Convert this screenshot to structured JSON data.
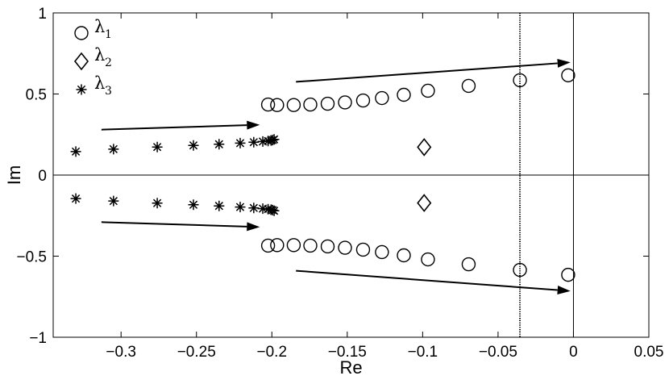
{
  "chart_data": {
    "type": "scatter",
    "title": "",
    "xlabel": "Re",
    "ylabel": "Im",
    "xlim": [
      -0.345,
      0.05
    ],
    "ylim": [
      -1,
      1
    ],
    "xticks": [
      -0.3,
      -0.25,
      -0.2,
      -0.15,
      -0.1,
      -0.05,
      0,
      0.05
    ],
    "xtick_labels": [
      "−0.3",
      "−0.25",
      "−0.2",
      "−0.15",
      "−0.1",
      "−0.05",
      "0",
      "0.05"
    ],
    "yticks": [
      -1,
      -0.5,
      0,
      0.5,
      1
    ],
    "ytick_labels": [
      "−1",
      "−0.5",
      "0",
      "0.5",
      "1"
    ],
    "grid": false,
    "legend_position": "top-left",
    "series": [
      {
        "name": "λ",
        "subscript": "1",
        "marker": "circle",
        "x": [
          -0.2025,
          -0.1965,
          -0.1855,
          -0.1745,
          -0.163,
          -0.1515,
          -0.1395,
          -0.127,
          -0.1125,
          -0.0965,
          -0.0695,
          -0.0355,
          -0.0035,
          -0.2025,
          -0.1965,
          -0.1855,
          -0.1745,
          -0.163,
          -0.1515,
          -0.1395,
          -0.127,
          -0.1125,
          -0.0965,
          -0.0695,
          -0.0355,
          -0.0035
        ],
        "y": [
          0.435,
          0.432,
          0.432,
          0.435,
          0.44,
          0.448,
          0.46,
          0.475,
          0.495,
          0.52,
          0.55,
          0.585,
          0.615,
          -0.435,
          -0.432,
          -0.432,
          -0.435,
          -0.44,
          -0.448,
          -0.46,
          -0.475,
          -0.495,
          -0.52,
          -0.55,
          -0.585,
          -0.615
        ]
      },
      {
        "name": "λ",
        "subscript": "2",
        "marker": "diamond",
        "x": [
          -0.099,
          -0.099
        ],
        "y": [
          0.172,
          -0.172
        ]
      },
      {
        "name": "λ",
        "subscript": "3",
        "marker": "asterisk",
        "x": [
          -0.33,
          -0.305,
          -0.276,
          -0.252,
          -0.235,
          -0.221,
          -0.212,
          -0.206,
          -0.2025,
          -0.2005,
          -0.1995,
          -0.1985,
          -0.33,
          -0.305,
          -0.276,
          -0.252,
          -0.235,
          -0.221,
          -0.212,
          -0.206,
          -0.2025,
          -0.2005,
          -0.1995,
          -0.1985
        ],
        "y": [
          0.145,
          0.16,
          0.173,
          0.183,
          0.19,
          0.197,
          0.203,
          0.207,
          0.21,
          0.213,
          0.216,
          0.22,
          -0.145,
          -0.16,
          -0.173,
          -0.183,
          -0.19,
          -0.197,
          -0.203,
          -0.207,
          -0.21,
          -0.213,
          -0.216,
          -0.22
        ]
      }
    ],
    "reference_lines": [
      {
        "axis": "x",
        "value": 0,
        "style": "solid"
      },
      {
        "axis": "y",
        "value": 0,
        "style": "solid"
      },
      {
        "axis": "x",
        "value": -0.0355,
        "style": "dotted"
      }
    ],
    "arrows": [
      {
        "from": [
          -0.313,
          0.28
        ],
        "to": [
          -0.208,
          0.31
        ]
      },
      {
        "from": [
          -0.313,
          -0.29
        ],
        "to": [
          -0.208,
          -0.32
        ]
      },
      {
        "from": [
          -0.184,
          0.575
        ],
        "to": [
          -0.002,
          0.695
        ]
      },
      {
        "from": [
          -0.184,
          -0.59
        ],
        "to": [
          -0.002,
          -0.715
        ]
      }
    ]
  }
}
